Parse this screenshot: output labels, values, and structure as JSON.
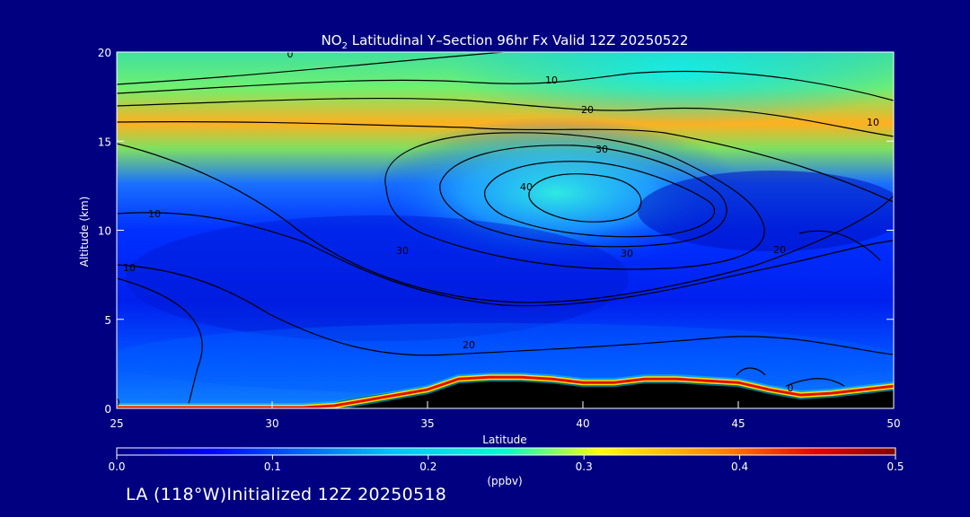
{
  "chart_data": {
    "type": "heatmap",
    "title_prefix": "NO",
    "title_sub": "2",
    "title_rest": " Latitudinal Y–Section 96hr  Fx Valid 12Z 20250522",
    "xlabel": "Latitude",
    "ylabel": "Altitude (km)",
    "xlim": [
      25,
      50
    ],
    "ylim": [
      0,
      20
    ],
    "x_ticks": [
      "25",
      "30",
      "35",
      "40",
      "45",
      "50"
    ],
    "y_ticks": [
      "0",
      "5",
      "10",
      "15",
      "20"
    ],
    "colorbar": {
      "unit": "(ppbv)",
      "range": [
        0.0,
        0.5
      ],
      "ticks": [
        "0.0",
        "0.1",
        "0.2",
        "0.3",
        "0.4",
        "0.5"
      ]
    },
    "contour_labels": [
      "0",
      "10",
      "20",
      "30",
      "40",
      "10",
      "10",
      "20",
      "30",
      "30",
      "20",
      "10",
      "0",
      "0"
    ],
    "terrain_km": [
      [
        25,
        0
      ],
      [
        31,
        0
      ],
      [
        32,
        0.1
      ],
      [
        33,
        0.4
      ],
      [
        34,
        0.7
      ],
      [
        35,
        1.0
      ],
      [
        36,
        1.6
      ],
      [
        37,
        1.7
      ],
      [
        38,
        1.7
      ],
      [
        39,
        1.6
      ],
      [
        40,
        1.4
      ],
      [
        41,
        1.4
      ],
      [
        42,
        1.6
      ],
      [
        43,
        1.6
      ],
      [
        44,
        1.5
      ],
      [
        45,
        1.4
      ],
      [
        46,
        1.0
      ],
      [
        47,
        0.7
      ],
      [
        48,
        0.8
      ],
      [
        49,
        1.0
      ],
      [
        50,
        1.2
      ]
    ]
  },
  "footer": "LA (118°W)Initialized 12Z 20250518"
}
